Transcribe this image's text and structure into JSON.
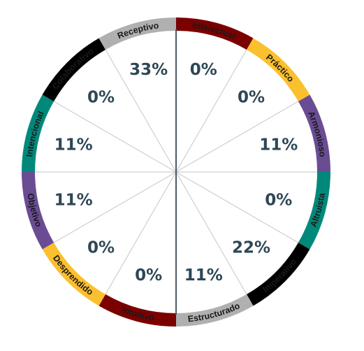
{
  "chart_data": {
    "type": "pie",
    "title": "",
    "categories": [
      "Intelectual",
      "Práctico",
      "Armonioso",
      "Altruista",
      "Imperativo",
      "Estructurado",
      "Intuitivo",
      "Desprendido",
      "Objetivo",
      "Intencional",
      "Colaborativo",
      "Receptivo"
    ],
    "values": [
      0,
      0,
      11,
      0,
      22,
      11,
      0,
      0,
      11,
      11,
      0,
      33
    ],
    "value_labels": [
      "0%",
      "0%",
      "11%",
      "0%",
      "22%",
      "11%",
      "0%",
      "0%",
      "11%",
      "11%",
      "0%",
      "33%"
    ],
    "segment_colors": [
      "#7b0000",
      "#fbc02d",
      "#6a4c93",
      "#00897b",
      "#000000",
      "#b0b0b0",
      "#7b0000",
      "#fbc02d",
      "#6a4c93",
      "#00897b",
      "#000000",
      "#b0b0b0"
    ],
    "legend": "none",
    "grid": false
  }
}
